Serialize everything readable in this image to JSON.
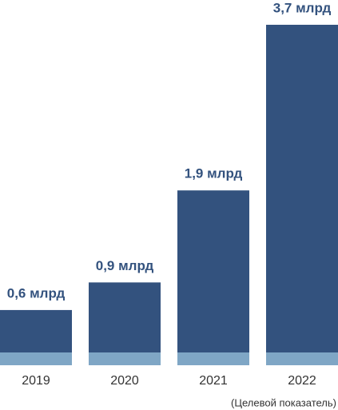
{
  "chart_data": {
    "type": "bar",
    "categories": [
      "2019",
      "2020",
      "2021",
      "2022"
    ],
    "values": [
      0.6,
      0.9,
      1.9,
      3.7
    ],
    "value_labels": [
      "0,6 млрд",
      "0,9 млрд",
      "1,9 млрд",
      "3,7 млрд"
    ],
    "color": "#33527e",
    "annotation": "(Целевой показатель)"
  }
}
